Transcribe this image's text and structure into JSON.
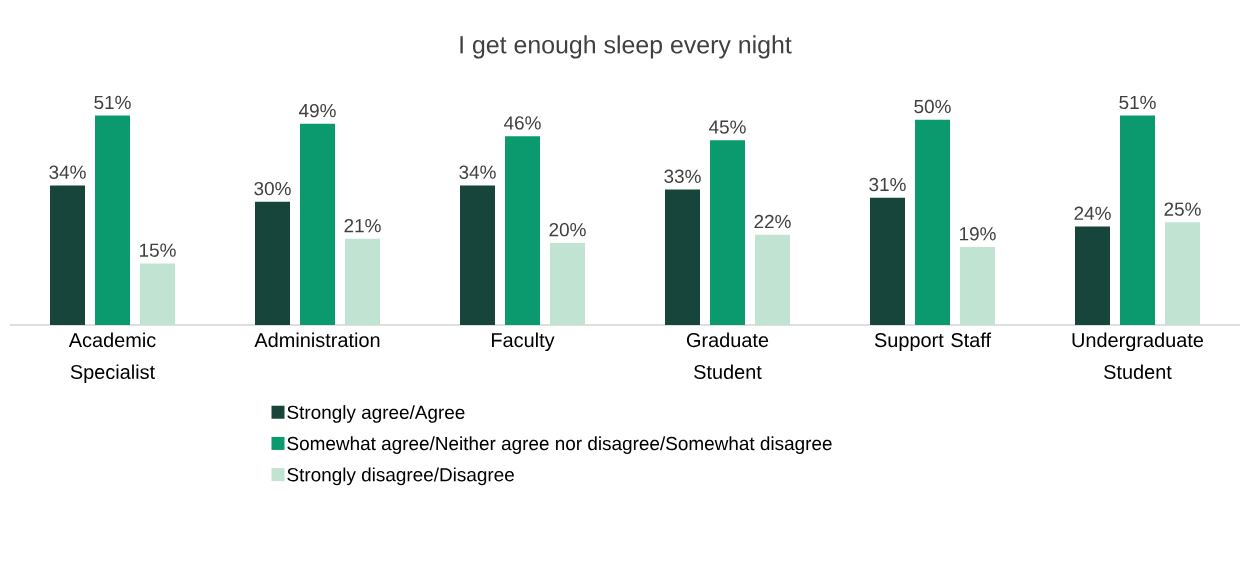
{
  "chart_data": {
    "type": "bar",
    "title": "I get enough sleep every night",
    "categories": [
      "Academic Specialist",
      "Administration",
      "Faculty",
      "Graduate Student",
      "Support Staff",
      "Undergraduate Student"
    ],
    "series": [
      {
        "name": "Strongly agree/Agree",
        "color": "#18453b",
        "values": [
          34,
          30,
          34,
          33,
          31,
          24
        ],
        "value_labels": [
          "34%",
          "30%",
          "34%",
          "33%",
          "31%",
          "24%"
        ]
      },
      {
        "name": "Somewhat agree/Neither agree nor disagree/Somewhat disagree",
        "color": "#0b9a6d",
        "values": [
          51,
          49,
          46,
          45,
          50,
          51
        ],
        "value_labels": [
          "51%",
          "49%",
          "46%",
          "45%",
          "50%",
          "51%"
        ]
      },
      {
        "name": "Strongly disagree/Disagree",
        "color": "#c0e3d2",
        "values": [
          15,
          21,
          20,
          22,
          19,
          25
        ],
        "value_labels": [
          "15%",
          "21%",
          "20%",
          "22%",
          "19%",
          "25%"
        ]
      }
    ],
    "legend": "bottom"
  }
}
